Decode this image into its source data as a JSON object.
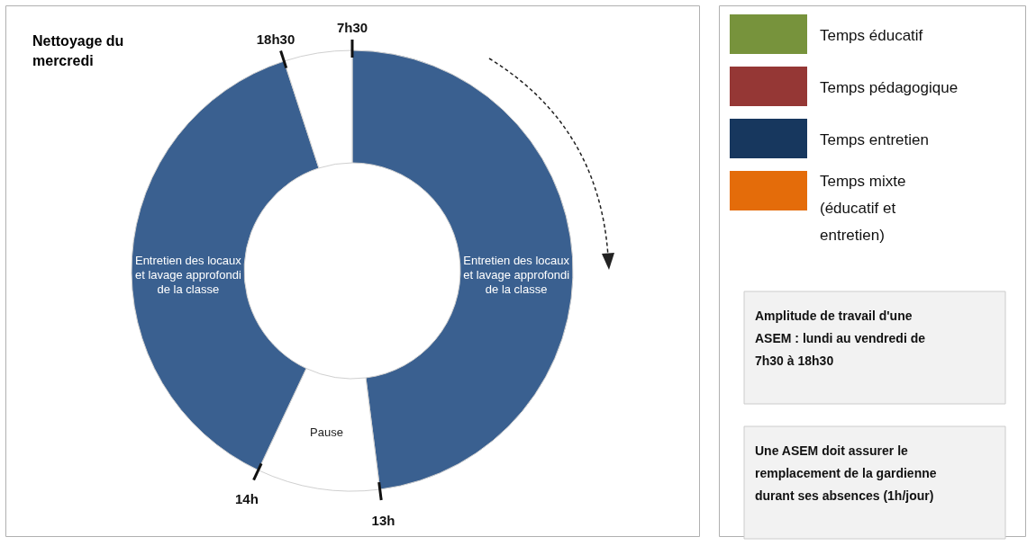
{
  "chart_data": [
    {
      "type": "donut",
      "title": "Nettoyage du mercredi",
      "categories": [
        "Entretien des locaux et lavage approfondi de la classe",
        "Pause",
        "Entretien des locaux et lavage approfondi de la classe",
        null
      ],
      "values": [
        48,
        9,
        38,
        5
      ],
      "colors": [
        "#3a6090",
        "#ffffff",
        "#3a6090",
        "#ffffff"
      ],
      "annotations": [
        "7h30",
        "13h",
        "14h",
        "18h30"
      ]
    },
    {
      "type": "other",
      "categories": [
        "Temps éducatif",
        "Temps pédagogique",
        "Temps entretien",
        "Temps mixte (éducatif et entretien)"
      ],
      "colors": [
        "#77933c",
        "#953735",
        "#17375e",
        "#e46c0a"
      ],
      "annotations": [
        "Amplitude de travail d'une ASEM : lundi au vendredi de 7h30 à 18h30",
        "Une ASEM doit assurer le remplacement de la gardienne durant ses absences (1h/jour)"
      ]
    }
  ]
}
